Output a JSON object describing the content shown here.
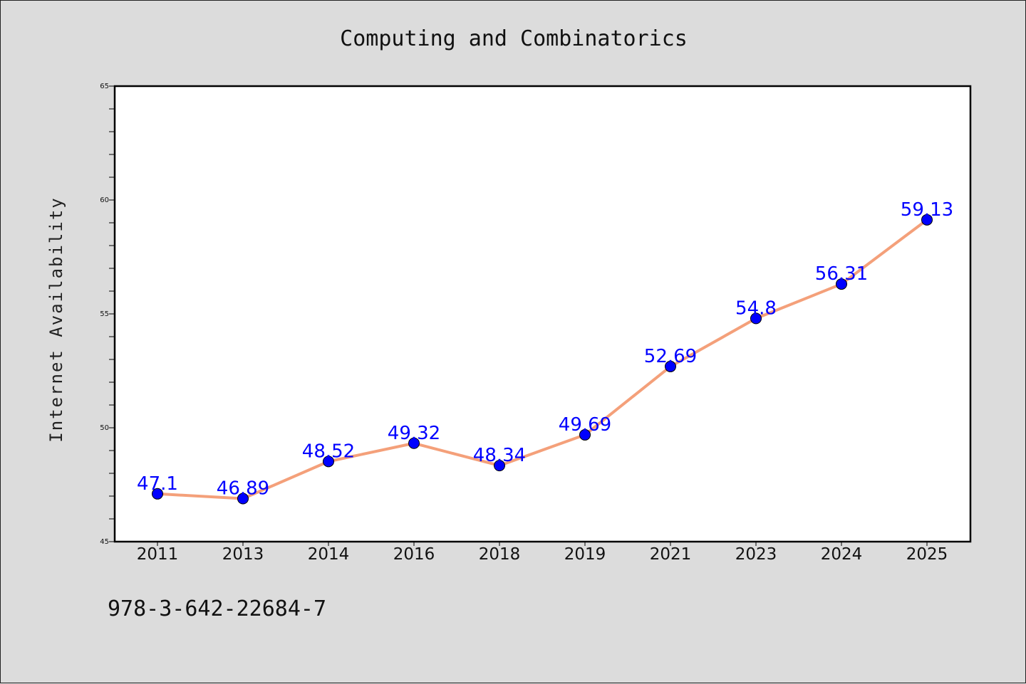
{
  "chart_data": {
    "type": "line",
    "title": "Computing and Combinatorics",
    "xlabel": "",
    "ylabel": "Internet Availability",
    "categories": [
      "2011",
      "2013",
      "2014",
      "2016",
      "2018",
      "2019",
      "2021",
      "2023",
      "2024",
      "2025"
    ],
    "series": [
      {
        "values": [
          47.1,
          46.89,
          48.52,
          49.32,
          48.34,
          49.69,
          52.69,
          54.8,
          56.31,
          59.13
        ],
        "labels": [
          "47.1",
          "46.89",
          "48.52",
          "49.32",
          "48.34",
          "49.69",
          "52.69",
          "54.8",
          "56.31",
          "59.13"
        ]
      }
    ],
    "ylim": [
      45,
      65
    ],
    "yticks": [
      45,
      50,
      55,
      60,
      65
    ],
    "ytick_labels": [
      "45",
      "50",
      "55",
      "60",
      "65"
    ],
    "grid": false,
    "colors": {
      "line": "#f4a07a",
      "marker": "#0000ff",
      "label": "#0000ff",
      "background": "#dcdcdc",
      "plot_area": "#ffffff"
    }
  },
  "footer": {
    "code": "978-3-642-22684-7"
  }
}
